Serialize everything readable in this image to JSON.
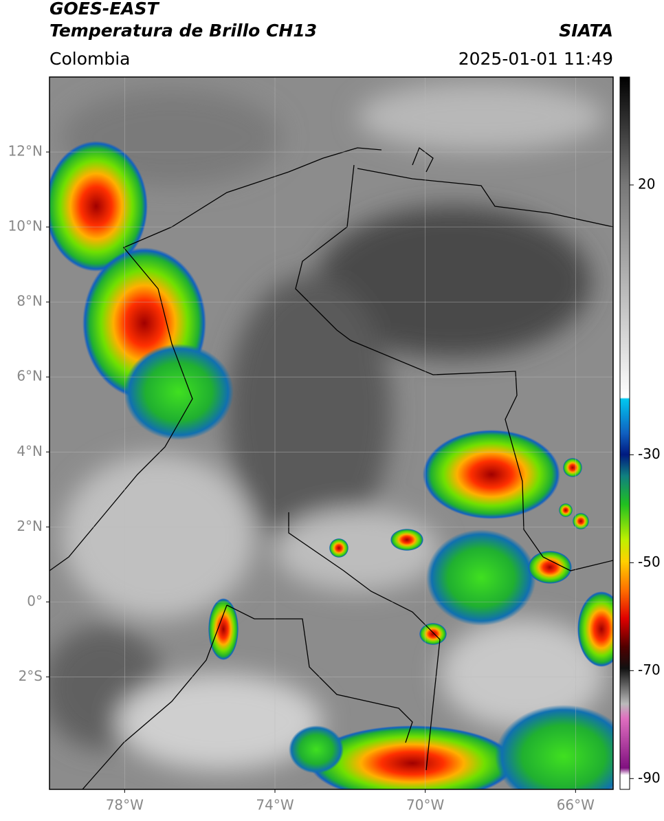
{
  "header": {
    "title": "GOES-EAST",
    "subtitle": "Temperatura de Brillo CH13",
    "source": "SIATA",
    "region": "Colombia",
    "timestamp": "2025-01-01 11:49"
  },
  "map": {
    "lon_range": [
      -80,
      -65
    ],
    "lat_range": [
      -5,
      14
    ],
    "lon_ticks": [
      {
        "value": -78,
        "label": "78°W"
      },
      {
        "value": -74,
        "label": "74°W"
      },
      {
        "value": -70,
        "label": "70°W"
      },
      {
        "value": -66,
        "label": "66°W"
      }
    ],
    "lat_ticks": [
      {
        "value": 12,
        "label": "12°N"
      },
      {
        "value": 10,
        "label": "10°N"
      },
      {
        "value": 8,
        "label": "8°N"
      },
      {
        "value": 6,
        "label": "6°N"
      },
      {
        "value": 4,
        "label": "4°N"
      },
      {
        "value": 2,
        "label": "2°N"
      },
      {
        "value": 0,
        "label": "0°"
      },
      {
        "value": -2,
        "label": "2°S"
      }
    ],
    "grid": true
  },
  "colorbar": {
    "range": [
      40,
      -92
    ],
    "ticks": [
      20,
      -30,
      -50,
      -70,
      -90
    ]
  }
}
